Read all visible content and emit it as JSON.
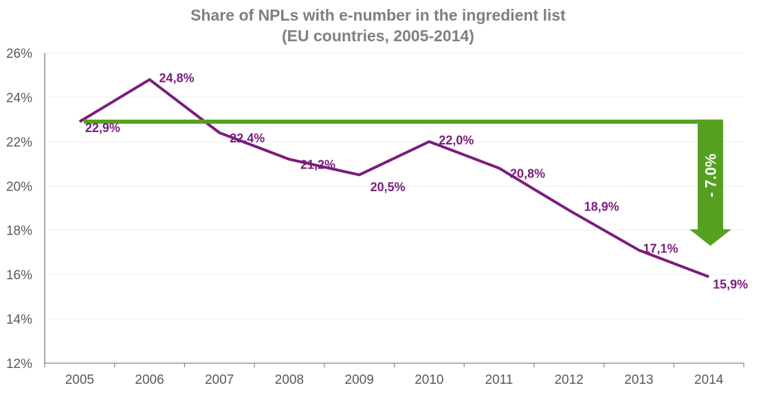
{
  "chart_data": {
    "type": "line",
    "title": "Share of NPLs with e-number in the ingredient list",
    "subtitle": "(EU countries, 2005-2014)",
    "xlabel": "",
    "ylabel": "",
    "categories": [
      "2005",
      "2006",
      "2007",
      "2008",
      "2009",
      "2010",
      "2011",
      "2012",
      "2013",
      "2014"
    ],
    "series": [
      {
        "name": "Share of NPLs with e-number",
        "color": "#7b1c7c",
        "values": [
          22.9,
          24.8,
          22.4,
          21.2,
          20.5,
          22.0,
          20.8,
          18.9,
          17.1,
          15.9
        ],
        "labels": [
          "22,9%",
          "24,8%",
          "22,4%",
          "21,2%",
          "20,5%",
          "22,0%",
          "20,8%",
          "18,9%",
          "17,1%",
          "15,9%"
        ]
      }
    ],
    "ylim": [
      12,
      26
    ],
    "yticks": [
      12,
      14,
      16,
      18,
      20,
      22,
      24,
      26
    ],
    "ytick_labels": [
      "12%",
      "14%",
      "16%",
      "18%",
      "20%",
      "22%",
      "24%",
      "26%"
    ],
    "grid": true,
    "legend": "none",
    "annotation": {
      "type": "reference-line-with-arrow",
      "level": 22.9,
      "from_category": "2005",
      "to_value": 15.9,
      "label": "- 7.0%",
      "color": "#56a01f"
    }
  }
}
